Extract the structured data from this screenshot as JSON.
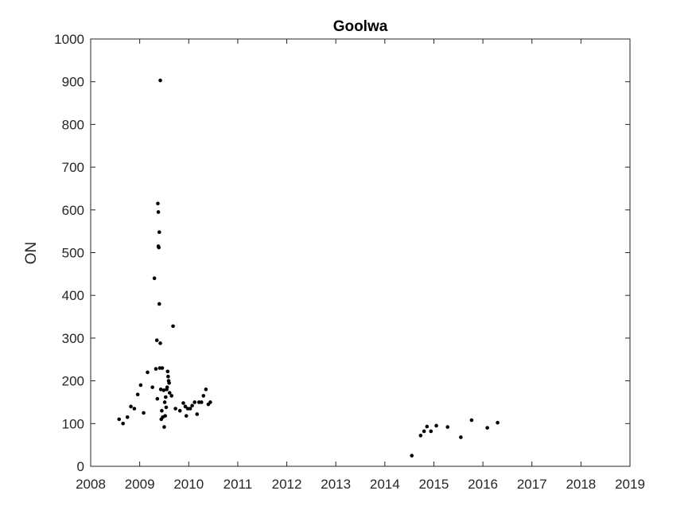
{
  "chart_data": {
    "type": "scatter",
    "title": "Goolwa",
    "xlabel": "",
    "ylabel": "ON",
    "xlim": [
      2008,
      2019
    ],
    "ylim": [
      0,
      1000
    ],
    "xticks": [
      "2008",
      "2009",
      "2010",
      "2011",
      "2012",
      "2013",
      "2014",
      "2015",
      "2016",
      "2017",
      "2018",
      "2019"
    ],
    "yticks": [
      "0",
      "100",
      "200",
      "300",
      "400",
      "500",
      "600",
      "700",
      "800",
      "900",
      "1000"
    ],
    "grid": false,
    "marker_color": "#000000",
    "series": [
      {
        "points": [
          [
            2008.58,
            110
          ],
          [
            2008.66,
            100
          ],
          [
            2008.75,
            115
          ],
          [
            2008.82,
            140
          ],
          [
            2008.89,
            135
          ],
          [
            2008.96,
            168
          ],
          [
            2009.02,
            190
          ],
          [
            2009.08,
            125
          ],
          [
            2009.16,
            220
          ],
          [
            2009.26,
            185
          ],
          [
            2009.3,
            440
          ],
          [
            2009.33,
            228
          ],
          [
            2009.35,
            295
          ],
          [
            2009.36,
            158
          ],
          [
            2009.37,
            615
          ],
          [
            2009.38,
            595
          ],
          [
            2009.38,
            515
          ],
          [
            2009.39,
            512
          ],
          [
            2009.4,
            548
          ],
          [
            2009.4,
            380
          ],
          [
            2009.41,
            230
          ],
          [
            2009.42,
            288
          ],
          [
            2009.42,
            903
          ],
          [
            2009.43,
            180
          ],
          [
            2009.44,
            110
          ],
          [
            2009.45,
            130
          ],
          [
            2009.46,
            230
          ],
          [
            2009.47,
            115
          ],
          [
            2009.49,
            178
          ],
          [
            2009.5,
            92
          ],
          [
            2009.51,
            150
          ],
          [
            2009.52,
            118
          ],
          [
            2009.53,
            162
          ],
          [
            2009.54,
            138
          ],
          [
            2009.55,
            180
          ],
          [
            2009.56,
            185
          ],
          [
            2009.57,
            222
          ],
          [
            2009.58,
            210
          ],
          [
            2009.59,
            200
          ],
          [
            2009.6,
            195
          ],
          [
            2009.61,
            172
          ],
          [
            2009.65,
            165
          ],
          [
            2009.68,
            328
          ],
          [
            2009.73,
            135
          ],
          [
            2009.82,
            130
          ],
          [
            2009.89,
            148
          ],
          [
            2009.93,
            140
          ],
          [
            2009.95,
            118
          ],
          [
            2009.98,
            135
          ],
          [
            2010.03,
            135
          ],
          [
            2010.07,
            142
          ],
          [
            2010.12,
            150
          ],
          [
            2010.17,
            122
          ],
          [
            2010.21,
            150
          ],
          [
            2010.26,
            150
          ],
          [
            2010.3,
            165
          ],
          [
            2010.35,
            180
          ],
          [
            2010.4,
            145
          ],
          [
            2010.44,
            150
          ],
          [
            2014.55,
            25
          ],
          [
            2014.73,
            72
          ],
          [
            2014.8,
            82
          ],
          [
            2014.86,
            93
          ],
          [
            2014.94,
            82
          ],
          [
            2015.05,
            95
          ],
          [
            2015.28,
            92
          ],
          [
            2015.55,
            68
          ],
          [
            2015.77,
            108
          ],
          [
            2016.09,
            90
          ],
          [
            2016.3,
            102
          ]
        ]
      }
    ]
  }
}
